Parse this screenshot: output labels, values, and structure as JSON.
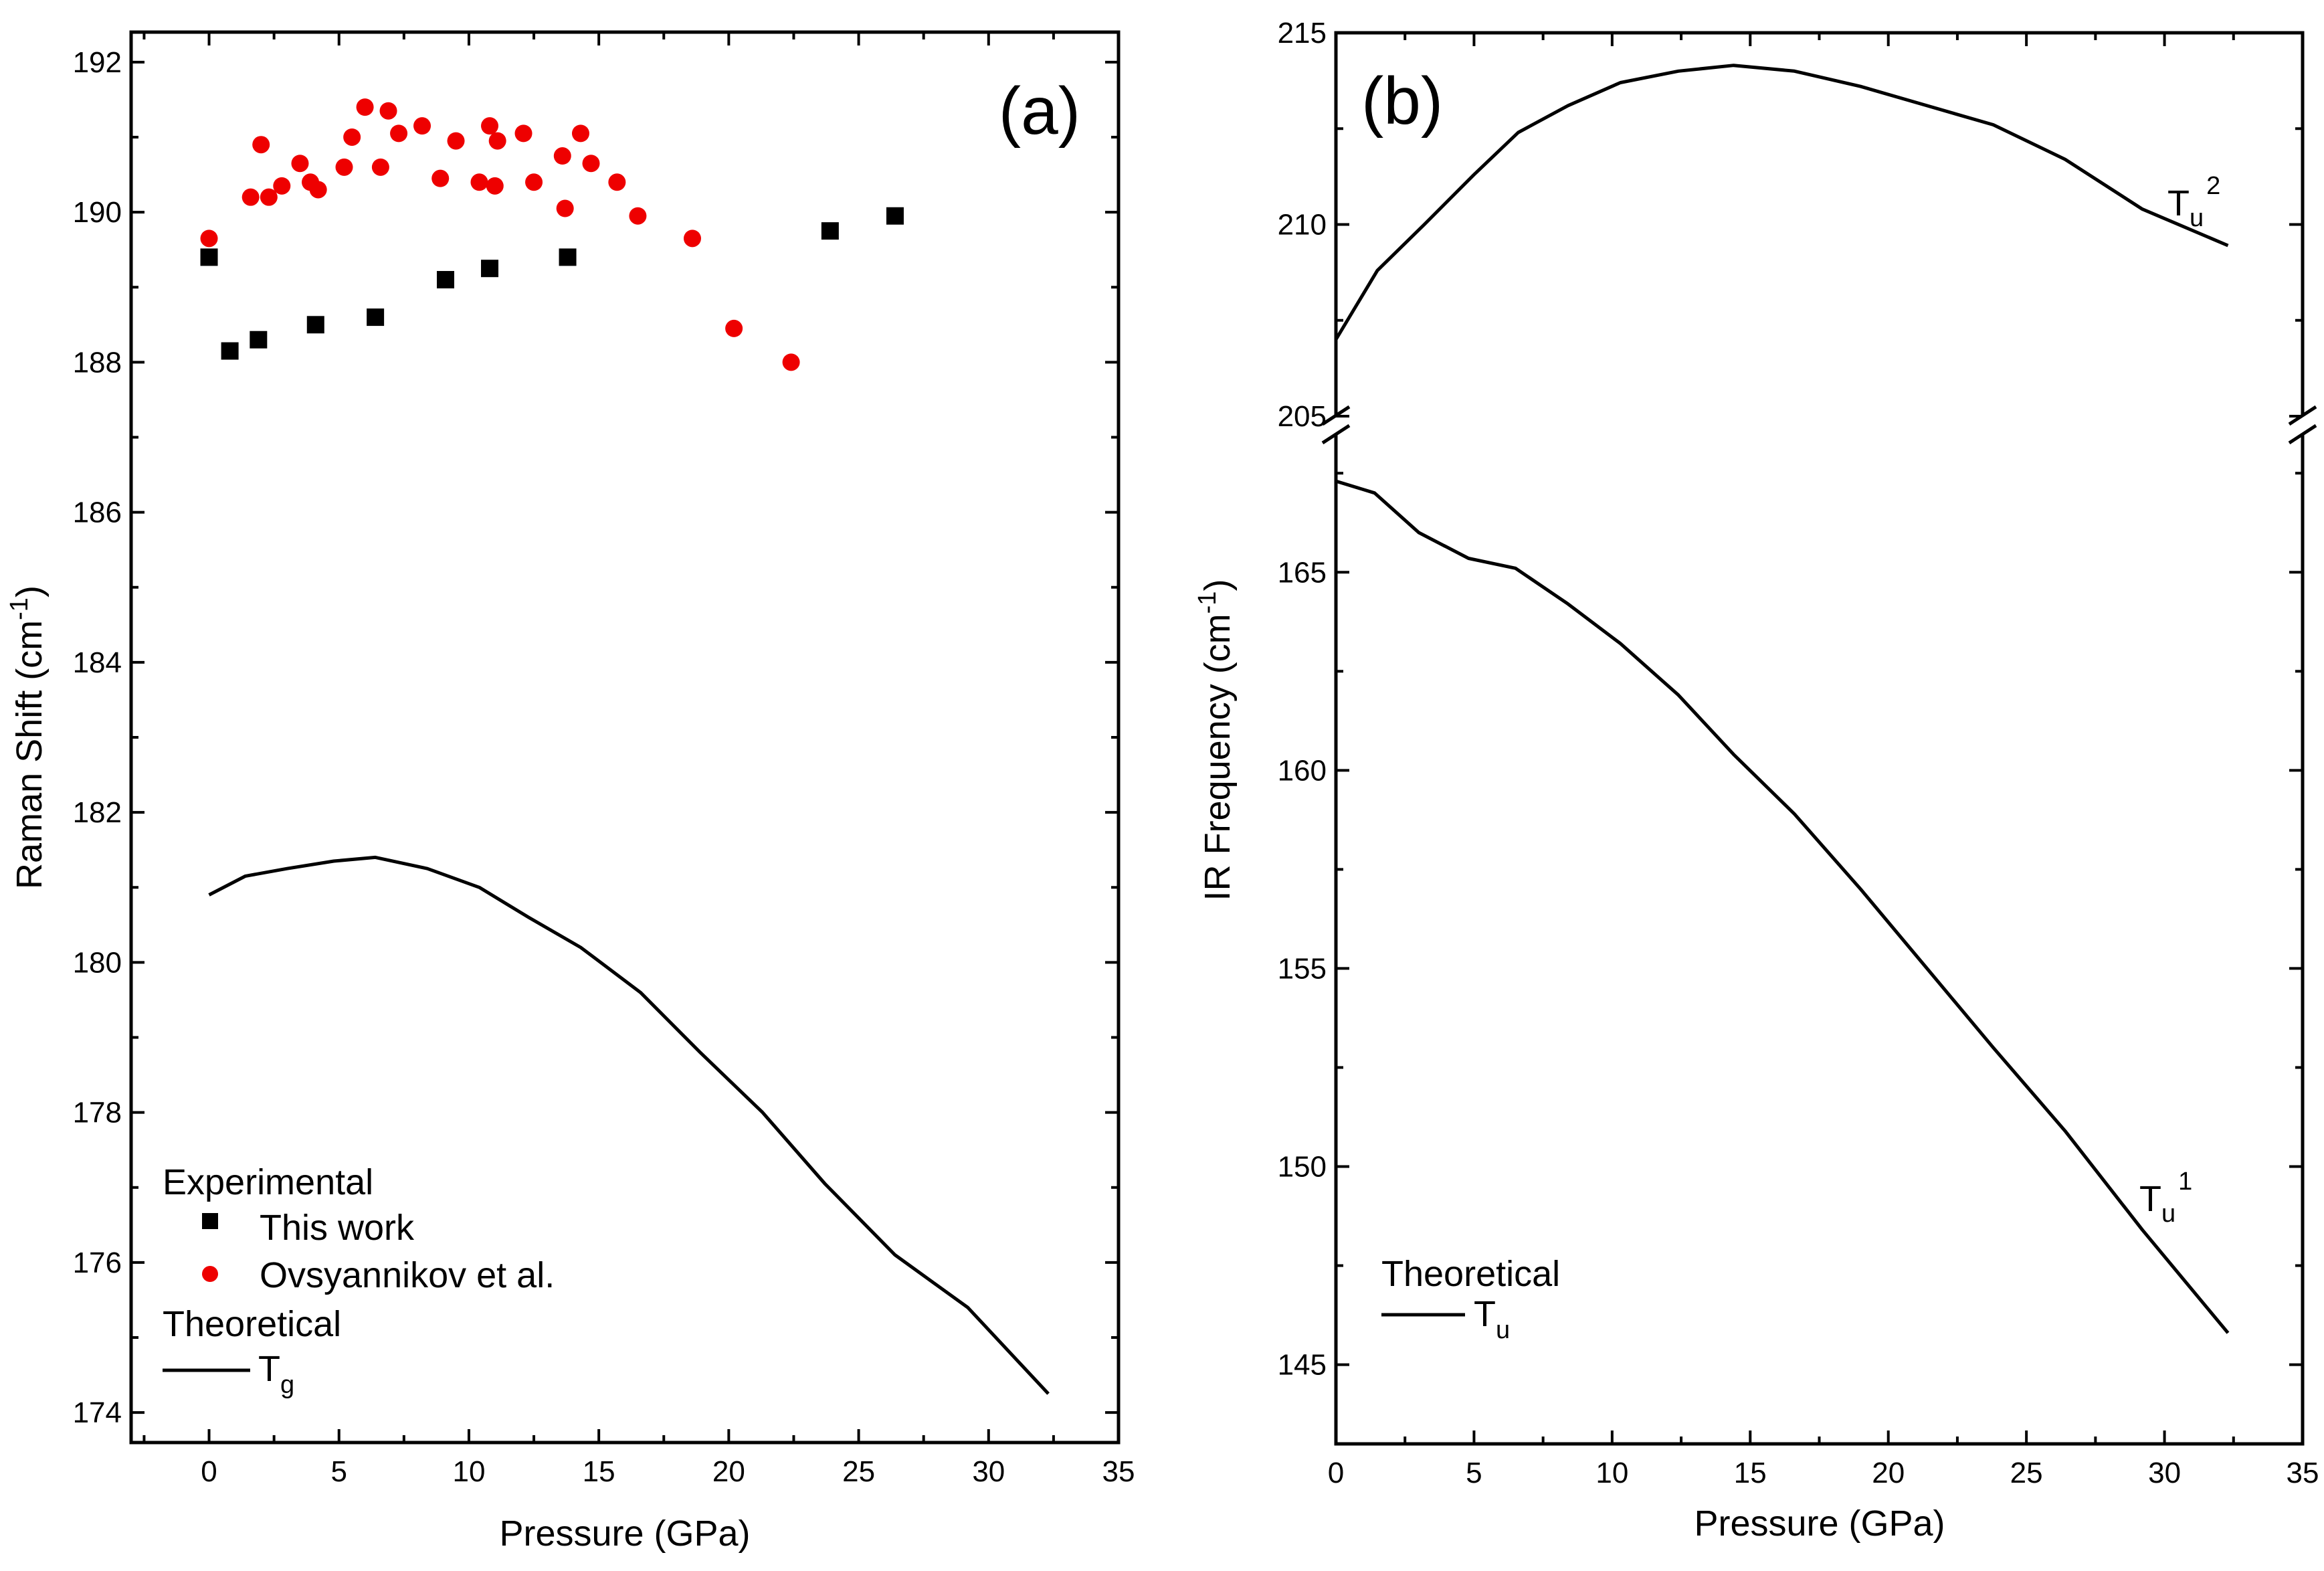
{
  "chart_data": [
    {
      "type": "scatter",
      "panel_label": "(a)",
      "xlabel": "Pressure (GPa)",
      "ylabel": "Raman Shift (cm-1)",
      "ylabel_parts": {
        "main": "Raman Shift (cm",
        "sup": "-1",
        "tail": ")"
      },
      "xlim": [
        -3,
        35
      ],
      "ylim": [
        173.6,
        192.4
      ],
      "xticks": [
        0,
        5,
        10,
        15,
        20,
        25,
        30,
        35
      ],
      "yticks": [
        174,
        176,
        178,
        180,
        182,
        184,
        186,
        188,
        190,
        192
      ],
      "legend": {
        "header_experimental": "Experimental",
        "header_theoretical": "Theoretical",
        "this_work": "This work",
        "ovsyannikov": "Ovsyannikov et al.",
        "tg_main": "T",
        "tg_sub": "g"
      },
      "series": [
        {
          "name": "This work",
          "marker": "square",
          "color": "#000000",
          "points": [
            [
              0,
              189.4
            ],
            [
              0.8,
              188.15
            ],
            [
              1.9,
              188.3
            ],
            [
              4.1,
              188.5
            ],
            [
              6.4,
              188.6
            ],
            [
              9.1,
              189.1
            ],
            [
              10.8,
              189.25
            ],
            [
              13.8,
              189.4
            ],
            [
              23.9,
              189.75
            ],
            [
              26.4,
              189.95
            ]
          ]
        },
        {
          "name": "Ovsyannikov et al.",
          "marker": "circle",
          "color": "#ee0000",
          "points": [
            [
              0,
              189.65
            ],
            [
              1.6,
              190.2
            ],
            [
              2,
              190.9
            ],
            [
              2.3,
              190.2
            ],
            [
              2.8,
              190.35
            ],
            [
              3.5,
              190.65
            ],
            [
              3.9,
              190.4
            ],
            [
              4.2,
              190.3
            ],
            [
              5.2,
              190.6
            ],
            [
              5.5,
              191.0
            ],
            [
              6.0,
              191.4
            ],
            [
              6.6,
              190.6
            ],
            [
              6.9,
              191.35
            ],
            [
              7.3,
              191.05
            ],
            [
              8.2,
              191.15
            ],
            [
              8.9,
              190.45
            ],
            [
              9.5,
              190.95
            ],
            [
              10.4,
              190.4
            ],
            [
              10.8,
              191.15
            ],
            [
              11.0,
              190.35
            ],
            [
              11.1,
              190.95
            ],
            [
              12.1,
              191.05
            ],
            [
              12.5,
              190.4
            ],
            [
              13.6,
              190.75
            ],
            [
              13.7,
              190.05
            ],
            [
              14.3,
              191.05
            ],
            [
              14.7,
              190.65
            ],
            [
              15.7,
              190.4
            ],
            [
              16.5,
              189.95
            ],
            [
              18.6,
              189.65
            ],
            [
              20.2,
              188.45
            ],
            [
              22.4,
              188.0
            ]
          ]
        },
        {
          "name": "Tg",
          "marker": "line",
          "color": "#000000",
          "points": [
            [
              0,
              180.9
            ],
            [
              1.4,
              181.15
            ],
            [
              3.0,
              181.25
            ],
            [
              4.8,
              181.35
            ],
            [
              6.4,
              181.4
            ],
            [
              8.4,
              181.25
            ],
            [
              10.4,
              181.0
            ],
            [
              12.3,
              180.6
            ],
            [
              14.3,
              180.2
            ],
            [
              16.6,
              179.6
            ],
            [
              18.9,
              178.8
            ],
            [
              21.3,
              178.0
            ],
            [
              23.7,
              177.05
            ],
            [
              26.4,
              176.1
            ],
            [
              29.2,
              175.4
            ],
            [
              32.3,
              174.25
            ]
          ]
        }
      ]
    },
    {
      "type": "line",
      "panel_label": "(b)",
      "xlabel": "Pressure (GPa)",
      "ylabel": "IR Frequency (cm-1)",
      "ylabel_parts": {
        "main": "IR Frequency (cm",
        "sup": "-1",
        "tail": ")"
      },
      "xlim": [
        0,
        35
      ],
      "broken_axis": true,
      "upper_ylim": [
        205,
        215
      ],
      "upper_yticks": [
        205,
        210,
        215
      ],
      "lower_ylim": [
        143,
        168.5
      ],
      "lower_yticks": [
        145,
        150,
        155,
        160,
        165
      ],
      "xticks": [
        0,
        5,
        10,
        15,
        20,
        25,
        30,
        35
      ],
      "legend": {
        "header_theoretical": "Theoretical",
        "tu_main": "T",
        "tu_sub": "u"
      },
      "labels": {
        "tu2_main": "T",
        "tu2_sub": "u",
        "tu2_sup": "2",
        "tu1_main": "T",
        "tu1_sub": "u",
        "tu1_sup": "1"
      },
      "series": [
        {
          "name": "Tu2",
          "color": "#000000",
          "points": [
            [
              0,
              207.0
            ],
            [
              1.5,
              208.8
            ],
            [
              3.2,
              210.0
            ],
            [
              5.0,
              211.3
            ],
            [
              6.6,
              212.4
            ],
            [
              8.4,
              213.1
            ],
            [
              10.3,
              213.7
            ],
            [
              12.4,
              214.0
            ],
            [
              14.4,
              214.15
            ],
            [
              16.6,
              214.0
            ],
            [
              19.0,
              213.6
            ],
            [
              21.4,
              213.1
            ],
            [
              23.8,
              212.6
            ],
            [
              26.4,
              211.7
            ],
            [
              29.2,
              210.4
            ],
            [
              32.3,
              209.45
            ]
          ]
        },
        {
          "name": "Tu1",
          "color": "#000000",
          "points": [
            [
              0,
              167.3
            ],
            [
              1.4,
              167.0
            ],
            [
              3.0,
              166.0
            ],
            [
              4.8,
              165.35
            ],
            [
              6.5,
              165.1
            ],
            [
              8.4,
              164.2
            ],
            [
              10.3,
              163.2
            ],
            [
              12.4,
              161.9
            ],
            [
              14.4,
              160.4
            ],
            [
              16.6,
              158.9
            ],
            [
              19.0,
              157.0
            ],
            [
              21.4,
              155.0
            ],
            [
              23.8,
              153.0
            ],
            [
              26.4,
              150.9
            ],
            [
              29.2,
              148.4
            ],
            [
              32.3,
              145.8
            ]
          ]
        }
      ]
    }
  ]
}
